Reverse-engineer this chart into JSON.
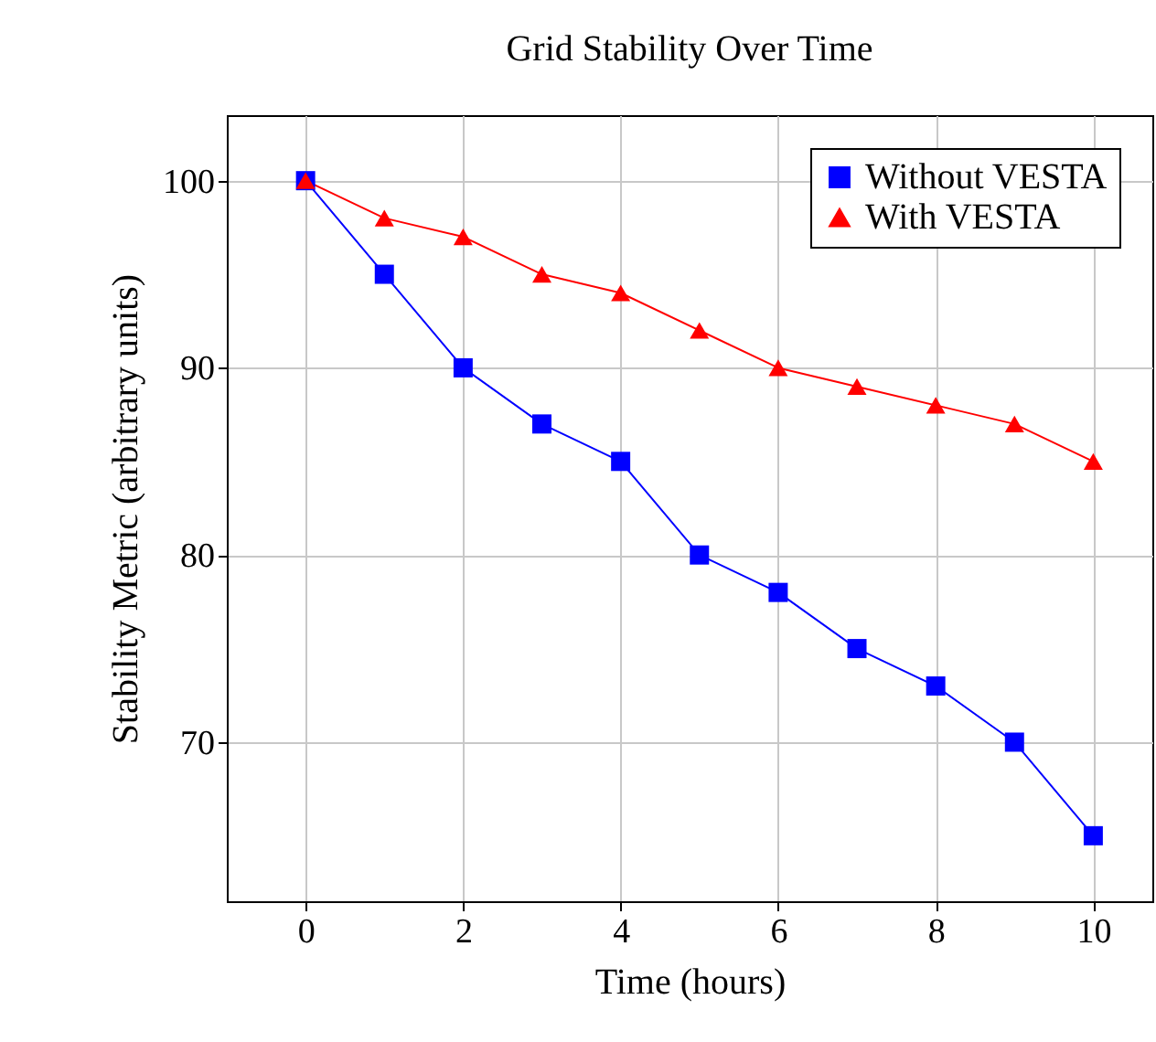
{
  "chart_data": {
    "type": "line",
    "title": "Grid Stability Over Time",
    "xlabel": "Time (hours)",
    "ylabel": "Stability Metric (arbitrary units)",
    "x": [
      0,
      1,
      2,
      3,
      4,
      5,
      6,
      7,
      8,
      9,
      10
    ],
    "series": [
      {
        "name": "Without VESTA",
        "color": "#0000ff",
        "marker": "square",
        "values": [
          100,
          95,
          90,
          87,
          85,
          80,
          78,
          75,
          73,
          70,
          65
        ]
      },
      {
        "name": "With VESTA",
        "color": "#ff0000",
        "marker": "triangle",
        "values": [
          100,
          98,
          97,
          95,
          94,
          92,
          90,
          89,
          88,
          87,
          85
        ]
      }
    ],
    "xlim": [
      -1,
      10.75
    ],
    "xticks": [
      0,
      2,
      4,
      6,
      8,
      10
    ],
    "ylim": [
      61.5,
      103.5
    ],
    "yticks": [
      70,
      80,
      90,
      100
    ],
    "grid": true,
    "legend": "top right",
    "line_style": "solid"
  }
}
